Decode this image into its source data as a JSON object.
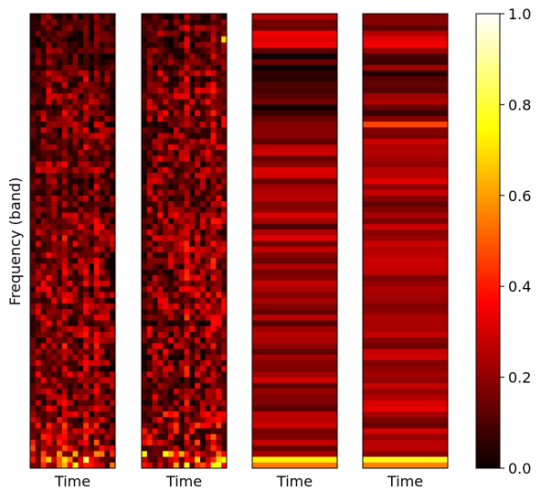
{
  "chart_data": [
    {
      "type": "heatmap",
      "xlabel": "Time",
      "ylabel": "Frequency (band)",
      "colormap": "hot",
      "value_range": [
        0,
        1
      ],
      "grid": false,
      "rows": 80,
      "cols": 16,
      "texture": "noisy",
      "band_means": [
        {
          "rows": [
            0,
            9
          ],
          "value": 0.12
        },
        {
          "rows": [
            10,
            34
          ],
          "value": 0.18
        },
        {
          "rows": [
            35,
            69
          ],
          "value": 0.2
        },
        {
          "rows": [
            70,
            76
          ],
          "value": 0.24
        },
        {
          "rows": [
            77,
            79
          ],
          "value": 0.38
        }
      ],
      "hot_cells": [
        {
          "row": 78,
          "col": 10,
          "value": 0.85
        },
        {
          "row": 79,
          "col": 8,
          "value": 0.75
        }
      ]
    },
    {
      "type": "heatmap",
      "xlabel": "Time",
      "ylabel": "",
      "colormap": "hot",
      "value_range": [
        0,
        1
      ],
      "grid": false,
      "rows": 80,
      "cols": 16,
      "texture": "noisy",
      "band_means": [
        {
          "rows": [
            0,
            9
          ],
          "value": 0.16
        },
        {
          "rows": [
            10,
            34
          ],
          "value": 0.21
        },
        {
          "rows": [
            35,
            69
          ],
          "value": 0.22
        },
        {
          "rows": [
            70,
            76
          ],
          "value": 0.28
        },
        {
          "rows": [
            77,
            79
          ],
          "value": 0.45
        }
      ],
      "hot_cells": [
        {
          "row": 4,
          "col": 15,
          "value": 0.7
        },
        {
          "row": 78,
          "col": 15,
          "value": 0.75
        }
      ]
    },
    {
      "type": "heatmap",
      "xlabel": "Time",
      "ylabel": "",
      "colormap": "hot",
      "value_range": [
        0,
        1
      ],
      "grid": false,
      "rows": 80,
      "cols": 1,
      "texture": "horizontal-bands",
      "band_means": [
        {
          "rows": [
            0,
            5
          ],
          "value": 0.22
        },
        {
          "rows": [
            6,
            17
          ],
          "value": 0.1
        },
        {
          "rows": [
            18,
            79
          ],
          "value": 0.2
        }
      ],
      "bright_rows": [
        {
          "row": 78,
          "value": 0.75
        },
        {
          "row": 79,
          "value": 0.55
        }
      ]
    },
    {
      "type": "heatmap",
      "xlabel": "Time",
      "ylabel": "",
      "colormap": "hot",
      "value_range": [
        0,
        1
      ],
      "grid": false,
      "rows": 80,
      "cols": 1,
      "texture": "horizontal-bands",
      "band_means": [
        {
          "rows": [
            0,
            5
          ],
          "value": 0.22
        },
        {
          "rows": [
            6,
            17
          ],
          "value": 0.14
        },
        {
          "rows": [
            18,
            79
          ],
          "value": 0.23
        }
      ],
      "bright_rows": [
        {
          "row": 19,
          "value": 0.45
        },
        {
          "row": 78,
          "value": 0.75
        },
        {
          "row": 79,
          "value": 0.55
        }
      ]
    },
    {
      "type": "colorbar",
      "colormap": "hot",
      "range": [
        0,
        1
      ],
      "ticks": [
        "0.0",
        "0.2",
        "0.4",
        "0.6",
        "0.8",
        "1.0"
      ]
    }
  ]
}
